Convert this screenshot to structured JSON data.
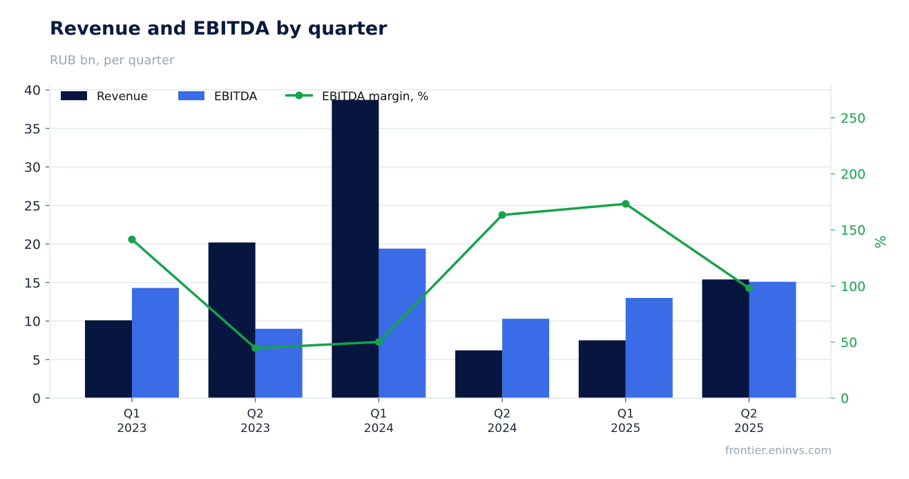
{
  "title": "Revenue and EBITDA by quarter",
  "subtitle": "RUB bn, per quarter",
  "source": "frontier.eninvs.com",
  "colors": {
    "revenue": "#06163f",
    "ebitda": "#3a6ce8",
    "margin": "#16a34a",
    "grid": "#e3e8f2",
    "axis_text": "#1f2937"
  },
  "chart_data": {
    "type": "bar",
    "categories": [
      [
        "Q1",
        "2023"
      ],
      [
        "Q2",
        "2023"
      ],
      [
        "Q1",
        "2024"
      ],
      [
        "Q2",
        "2024"
      ],
      [
        "Q1",
        "2025"
      ],
      [
        "Q2",
        "2025"
      ]
    ],
    "series": [
      {
        "name": "Revenue",
        "type": "bar",
        "axis": "left",
        "values": [
          10.1,
          20.2,
          38.7,
          6.2,
          7.5,
          15.4
        ]
      },
      {
        "name": "EBITDA",
        "type": "bar",
        "axis": "left",
        "values": [
          14.3,
          9.0,
          19.4,
          10.3,
          13.0,
          15.1
        ]
      },
      {
        "name": "EBITDA margin, %",
        "type": "line",
        "axis": "right",
        "values": [
          141.6,
          44.6,
          50.1,
          163.4,
          173.3,
          98.1
        ]
      }
    ],
    "ylim_left": [
      0,
      40
    ],
    "yticks_left": [
      0,
      5,
      10,
      15,
      20,
      25,
      30,
      35,
      40
    ],
    "ylim_right": [
      0,
      275
    ],
    "yticks_right": [
      0,
      50,
      100,
      150,
      200,
      250
    ],
    "ylabel_right": "%",
    "legend": "top-left",
    "grid": true
  }
}
